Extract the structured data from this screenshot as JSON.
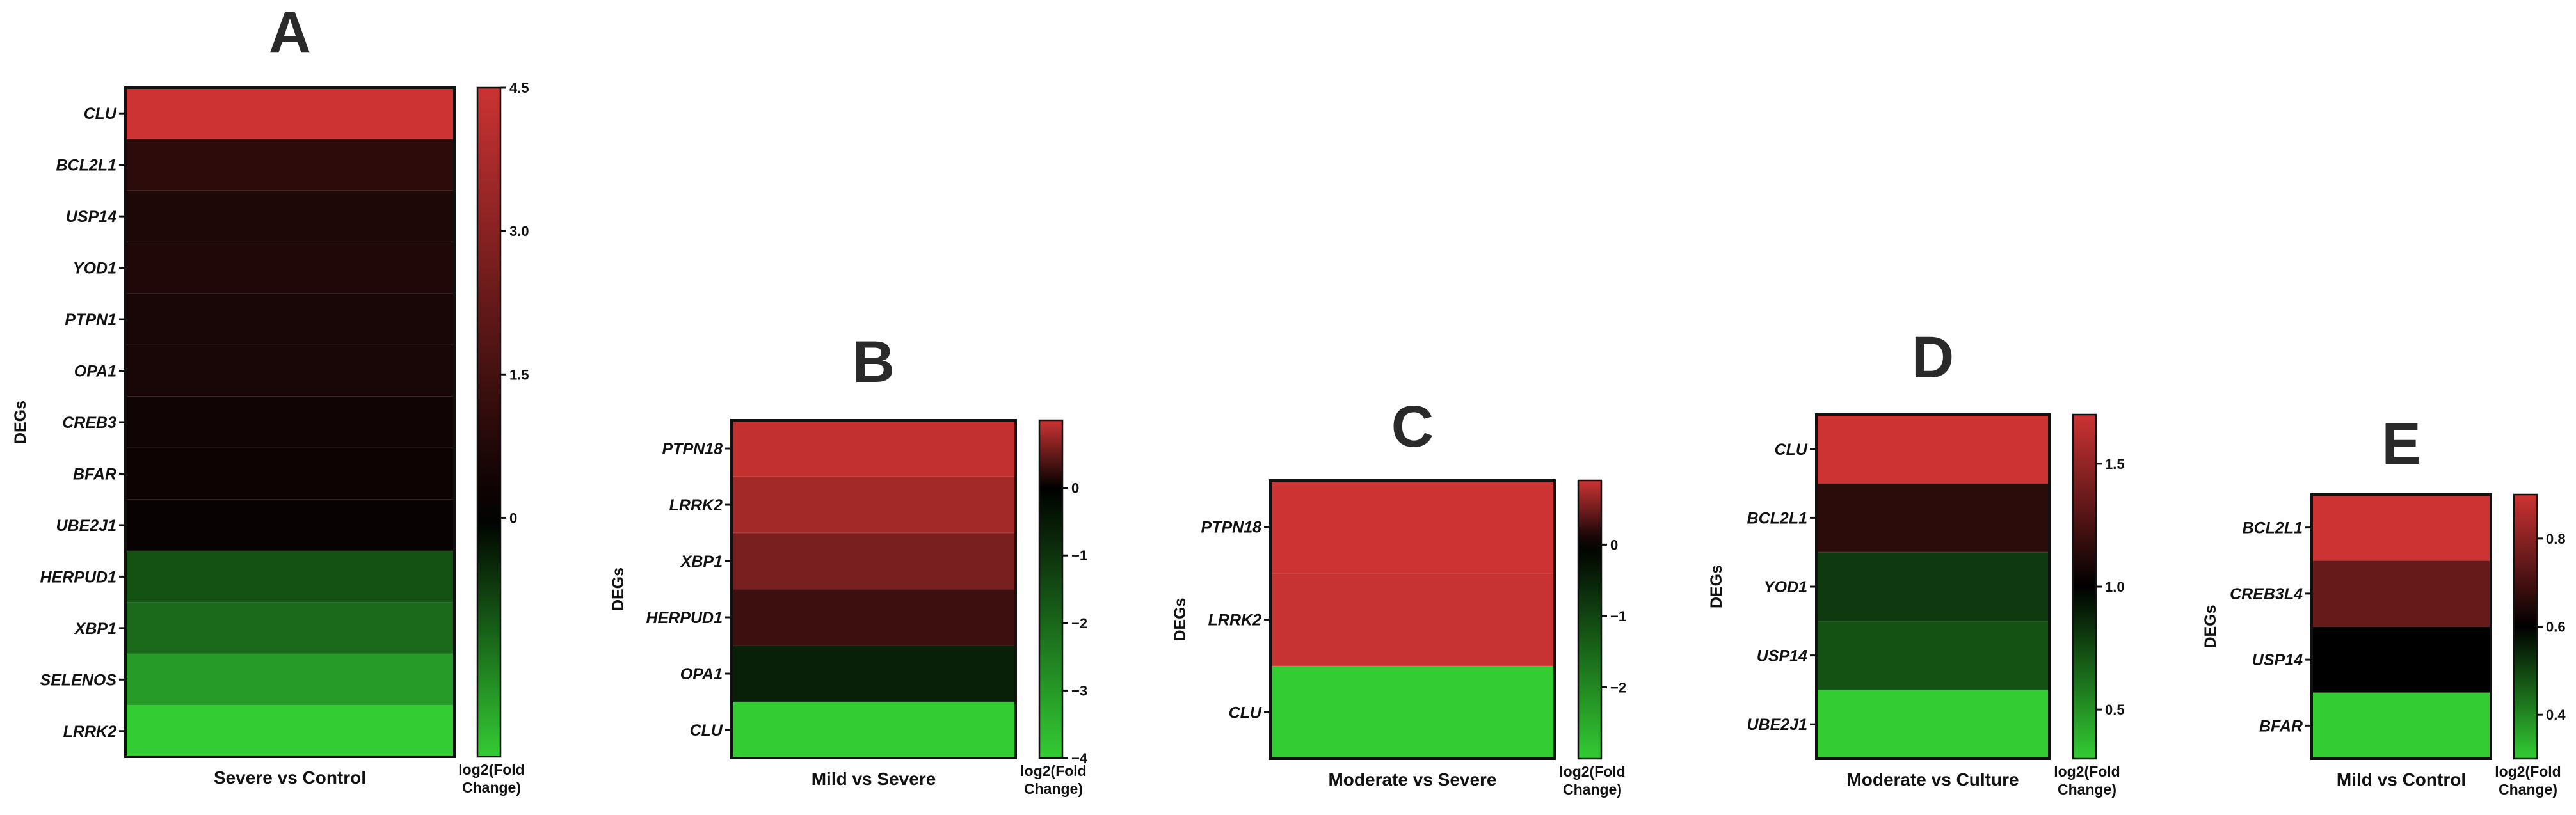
{
  "color_scale": {
    "low": "#33cc33",
    "mid": "#000000",
    "high": "#cc3333"
  },
  "chart_data": [
    {
      "panel": "A",
      "type": "heatmap",
      "xlabel": "Severe vs Control",
      "ylabel": "DEGs",
      "colorbar_label": [
        "log2(Fold",
        "Change)"
      ],
      "genes": [
        "CLU",
        "BCL2L1",
        "USP14",
        "YOD1",
        "PTPN1",
        "OPA1",
        "CREB3",
        "BFAR",
        "UBE2J1",
        "HERPUD1",
        "XBP1",
        "SELENOS",
        "LRRK2"
      ],
      "values": [
        4.5,
        1.0,
        0.65,
        0.7,
        0.55,
        0.55,
        0.35,
        0.3,
        0.2,
        -1.0,
        -1.3,
        -1.9,
        -2.5
      ],
      "color_range": [
        -2.5,
        4.5
      ],
      "color_mid": 0,
      "ticks": [
        0,
        1.5,
        3.0,
        4.5
      ],
      "tick_labels": [
        "0",
        "1.5",
        "3.0",
        "4.5"
      ]
    },
    {
      "panel": "B",
      "type": "heatmap",
      "xlabel": "Mild vs Severe",
      "ylabel": "DEGs",
      "colorbar_label": [
        "log2(Fold",
        "Change)"
      ],
      "genes": [
        "PTPN18",
        "LRRK2",
        "XBP1",
        "HERPUD1",
        "OPA1",
        "CLU"
      ],
      "values": [
        0.95,
        0.8,
        0.6,
        0.3,
        -0.6,
        -4.0
      ],
      "color_range": [
        -4,
        1
      ],
      "color_mid": 0,
      "ticks": [
        -4,
        -3,
        -2,
        -1,
        0
      ],
      "tick_labels": [
        "−4",
        "−3",
        "−2",
        "−1",
        "0"
      ]
    },
    {
      "panel": "C",
      "type": "heatmap",
      "xlabel": "Moderate vs Severe",
      "ylabel": "DEGs",
      "colorbar_label": [
        "log2(Fold",
        "Change)"
      ],
      "genes": [
        "PTPN18",
        "LRRK2",
        "CLU"
      ],
      "values": [
        0.9,
        0.88,
        -3.0
      ],
      "color_range": [
        -3,
        0.9
      ],
      "color_mid": 0,
      "ticks": [
        -2,
        -1,
        0
      ],
      "tick_labels": [
        "−2",
        "−1",
        "0"
      ]
    },
    {
      "panel": "D",
      "type": "heatmap",
      "xlabel": "Moderate vs Culture",
      "ylabel": "DEGs",
      "colorbar_label": [
        "log2(Fold",
        "Change)"
      ],
      "genes": [
        "CLU",
        "BCL2L1",
        "YOD1",
        "USP14",
        "UBE2J1"
      ],
      "values": [
        1.7,
        1.15,
        0.8,
        0.72,
        0.3
      ],
      "color_range": [
        0.3,
        1.7
      ],
      "color_mid": 1.0,
      "ticks": [
        0.5,
        1.0,
        1.5
      ],
      "tick_labels": [
        "0.5",
        "1.0",
        "1.5"
      ]
    },
    {
      "panel": "E",
      "type": "heatmap",
      "xlabel": "Mild vs Control",
      "ylabel": "DEGs",
      "colorbar_label": [
        "log2(Fold",
        "Change)"
      ],
      "genes": [
        "BCL2L1",
        "CREB3L4",
        "USP14",
        "BFAR"
      ],
      "values": [
        0.9,
        0.75,
        0.6,
        0.3
      ],
      "color_range": [
        0.3,
        0.9
      ],
      "color_mid": 0.6,
      "ticks": [
        0.4,
        0.6,
        0.8
      ],
      "tick_labels": [
        "0.4",
        "0.6",
        "0.8"
      ]
    }
  ]
}
